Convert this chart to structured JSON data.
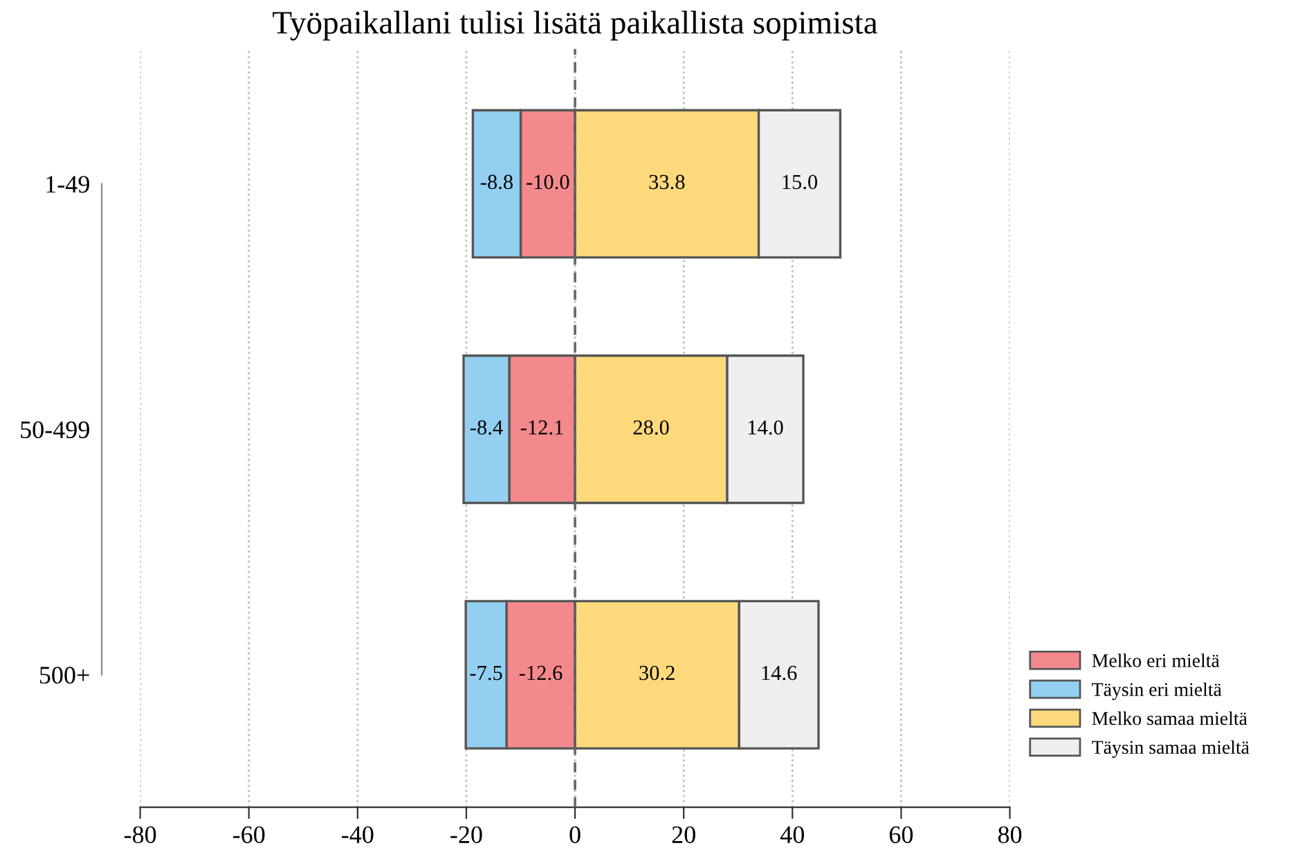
{
  "chart_data": {
    "type": "bar",
    "orientation": "horizontal",
    "stacked": true,
    "title": "Työpaikallani tulisi lisätä paikallista sopimista",
    "categories": [
      "1-49",
      "50-499",
      "500+"
    ],
    "series": [
      {
        "name": "Melko eri mieltä",
        "color": "#f4898d",
        "values": [
          -10.0,
          -12.1,
          -12.6
        ],
        "value_labels": [
          "-10.0",
          "-12.1",
          "-12.6"
        ]
      },
      {
        "name": "Täysin eri mieltä",
        "color": "#93cff0",
        "values": [
          -8.8,
          -8.4,
          -7.5
        ],
        "value_labels": [
          "-8.8",
          "-8.4",
          "-7.5"
        ]
      },
      {
        "name": "Melko samaa mieltä",
        "color": "#fdd97c",
        "values": [
          33.8,
          28.0,
          30.2
        ],
        "value_labels": [
          "33.8",
          "28.0",
          "30.2"
        ]
      },
      {
        "name": "Täysin samaa mieltä",
        "color": "#efefef",
        "values": [
          15.0,
          14.0,
          14.6
        ],
        "value_labels": [
          "15.0",
          "14.0",
          "14.6"
        ]
      }
    ],
    "xlim": [
      -80,
      80
    ],
    "xticks": [
      -80,
      -60,
      -40,
      -20,
      0,
      20,
      40,
      60,
      80
    ],
    "grid": "x",
    "legend": "bottom right",
    "ref_lines": [
      {
        "axis": "x",
        "value": 0,
        "label": null,
        "color": "#666666",
        "line_style": "dashed"
      }
    ]
  }
}
